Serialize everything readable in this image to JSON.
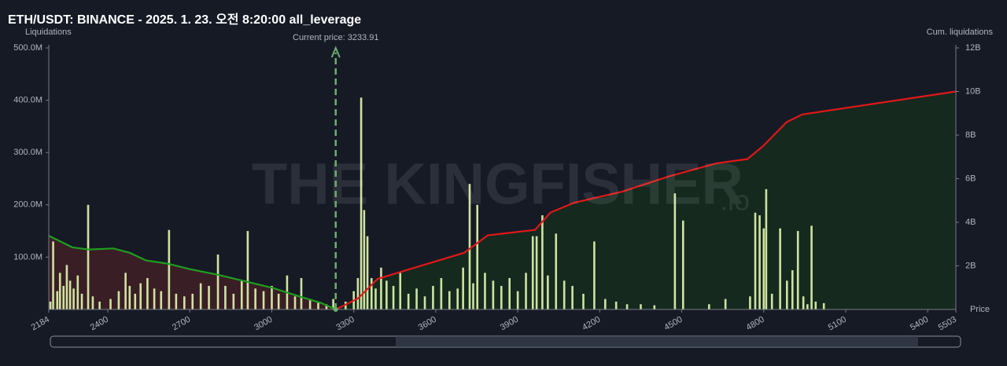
{
  "chart_data": {
    "type": "bar",
    "title": "ETH/USDT: BINANCE - 2025. 1. 23. 오전 8:20:00 all_leverage",
    "y_label": "Liquidations",
    "y2_label": "Cum. liquidations",
    "x_label": "Price",
    "watermark": "THE KINGFISHER",
    "watermark_suffix": ".io",
    "current_price": {
      "value": 3233.91,
      "label": "Current price: 3233.91"
    },
    "xlim": [
      2184,
      5503
    ],
    "xticks": [
      2184,
      2400,
      2700,
      3000,
      3300,
      3600,
      3900,
      4200,
      4500,
      4800,
      5100,
      5400,
      5503
    ],
    "ylim": [
      0,
      500000000
    ],
    "yticks": [
      {
        "value": 100000000,
        "label": "100.0M"
      },
      {
        "value": 200000000,
        "label": "200.0M"
      },
      {
        "value": 300000000,
        "label": "300.0M"
      },
      {
        "value": 400000000,
        "label": "400.0M"
      },
      {
        "value": 500000000,
        "label": "500.0M"
      }
    ],
    "y2lim": [
      0,
      12000000000
    ],
    "y2ticks": [
      {
        "value": 2000000000,
        "label": "2B"
      },
      {
        "value": 4000000000,
        "label": "4B"
      },
      {
        "value": 6000000000,
        "label": "6B"
      },
      {
        "value": 8000000000,
        "label": "8B"
      },
      {
        "value": 10000000000,
        "label": "10B"
      },
      {
        "value": 12000000000,
        "label": "12B"
      }
    ],
    "series": [
      {
        "kind": "bar",
        "color": "#cfe3a0",
        "x": [
          2190,
          2200,
          2215,
          2225,
          2238,
          2250,
          2262,
          2275,
          2290,
          2305,
          2328,
          2345,
          2370,
          2410,
          2440,
          2465,
          2480,
          2500,
          2520,
          2545,
          2570,
          2595,
          2624,
          2650,
          2680,
          2710,
          2740,
          2770,
          2803,
          2830,
          2860,
          2890,
          2912,
          2940,
          2970,
          3000,
          3025,
          3056,
          3085,
          3108,
          3140,
          3170,
          3200,
          3225,
          3270,
          3300,
          3315,
          3327,
          3338,
          3350,
          3365,
          3380,
          3400,
          3420,
          3445,
          3470,
          3500,
          3530,
          3560,
          3590,
          3620,
          3650,
          3680,
          3700,
          3724,
          3737,
          3752,
          3780,
          3810,
          3840,
          3870,
          3900,
          3930,
          3955,
          3969,
          3990,
          4010,
          4040,
          4070,
          4100,
          4140,
          4180,
          4220,
          4260,
          4300,
          4350,
          4400,
          4475,
          4505,
          4600,
          4660,
          4750,
          4769,
          4785,
          4800,
          4809,
          4830,
          4860,
          4885,
          4905,
          4925,
          4945,
          4960,
          4975,
          4990,
          5020
        ],
        "values": [
          15000000,
          130000000,
          35000000,
          70000000,
          45000000,
          85000000,
          55000000,
          40000000,
          65000000,
          30000000,
          200000000,
          25000000,
          15000000,
          20000000,
          35000000,
          70000000,
          45000000,
          30000000,
          50000000,
          60000000,
          40000000,
          35000000,
          152000000,
          30000000,
          25000000,
          30000000,
          50000000,
          45000000,
          105000000,
          45000000,
          30000000,
          55000000,
          150000000,
          40000000,
          35000000,
          45000000,
          30000000,
          65000000,
          25000000,
          60000000,
          20000000,
          15000000,
          10000000,
          20000000,
          15000000,
          35000000,
          60000000,
          405000000,
          190000000,
          140000000,
          60000000,
          40000000,
          80000000,
          55000000,
          45000000,
          70000000,
          30000000,
          40000000,
          25000000,
          45000000,
          60000000,
          35000000,
          40000000,
          80000000,
          240000000,
          50000000,
          200000000,
          70000000,
          55000000,
          45000000,
          60000000,
          35000000,
          70000000,
          140000000,
          140000000,
          180000000,
          65000000,
          145000000,
          55000000,
          45000000,
          30000000,
          130000000,
          20000000,
          15000000,
          10000000,
          10000000,
          8000000,
          222000000,
          170000000,
          10000000,
          20000000,
          25000000,
          185000000,
          180000000,
          155000000,
          230000000,
          30000000,
          155000000,
          55000000,
          75000000,
          150000000,
          25000000,
          10000000,
          160000000,
          15000000,
          12000000
        ]
      },
      {
        "kind": "line",
        "axis": "y2",
        "color": "#1f9e1f",
        "fill": "#3a1e26",
        "x": [
          2184,
          2230,
          2270,
          2330,
          2420,
          2480,
          2540,
          2620,
          2700,
          2800,
          2900,
          3000,
          3100,
          3180,
          3233.91
        ],
        "values": [
          3380000000,
          3100000000,
          2850000000,
          2750000000,
          2800000000,
          2600000000,
          2250000000,
          2100000000,
          1850000000,
          1600000000,
          1300000000,
          1000000000,
          600000000,
          300000000,
          0
        ]
      },
      {
        "kind": "line",
        "axis": "y2",
        "color": "#e01818",
        "fill": "#15291f",
        "x": [
          3233.91,
          3315,
          3387,
          3531,
          3704,
          3790,
          3963,
          4020,
          4107,
          4280,
          4452,
          4625,
          4740,
          4798,
          4884,
          4942,
          5503
        ],
        "values": [
          0,
          500000000,
          1400000000,
          1950000000,
          2600000000,
          3400000000,
          3650000000,
          4450000000,
          4900000000,
          5400000000,
          6100000000,
          6700000000,
          6900000000,
          7500000000,
          8600000000,
          8950000000,
          10000000000
        ]
      }
    ]
  }
}
